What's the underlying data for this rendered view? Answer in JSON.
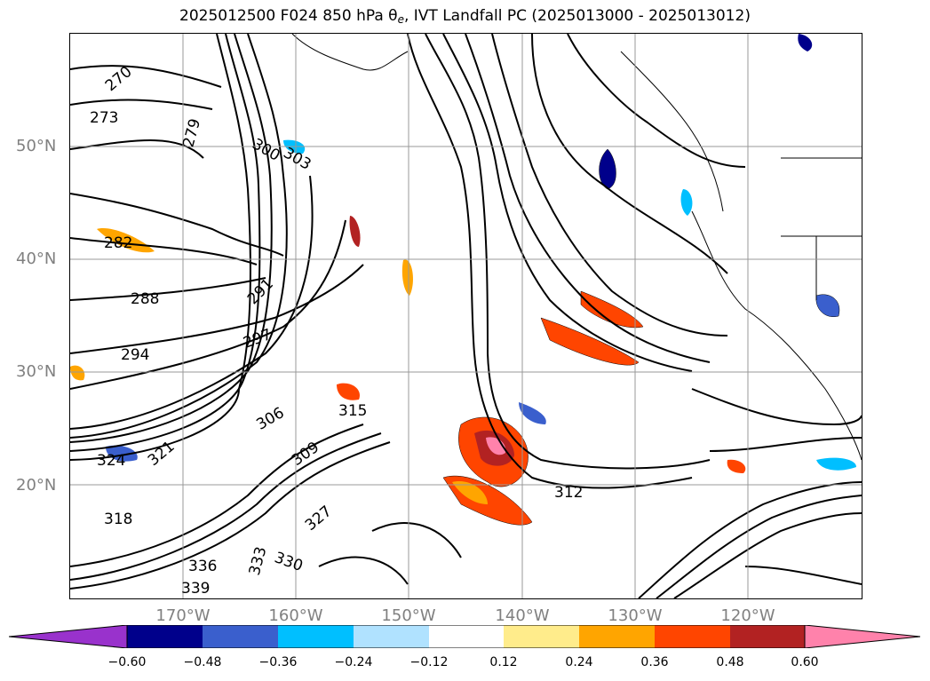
{
  "title": {
    "main": "2025012500 F024 850 hPa θ",
    "sub": "e",
    "rest": ", IVT Landfall PC (2025013000 - 2025013012)"
  },
  "map": {
    "latitude_labels": [
      "50°N",
      "40°N",
      "30°N",
      "20°N"
    ],
    "longitude_labels": [
      "170°W",
      "160°W",
      "150°W",
      "140°W",
      "130°W",
      "120°W"
    ],
    "contour_variable": "850 hPa theta-e",
    "contour_labels": [
      "270",
      "273",
      "279",
      "282",
      "288",
      "291",
      "294",
      "297",
      "300",
      "303",
      "306",
      "309",
      "312",
      "315",
      "318",
      "321",
      "324",
      "327",
      "330",
      "333",
      "336",
      "339"
    ]
  },
  "colorbar": {
    "ticks": [
      "−0.60",
      "−0.48",
      "−0.36",
      "−0.24",
      "−0.12",
      "0.12",
      "0.24",
      "0.36",
      "0.48",
      "0.60"
    ],
    "colors": [
      "#9932cc",
      "#00008b",
      "#3a5fcd",
      "#00bfff",
      "#b0e2ff",
      "#ffffff",
      "#ffec8b",
      "#ffa500",
      "#ff4500",
      "#b22222",
      "#ff82ab"
    ]
  }
}
